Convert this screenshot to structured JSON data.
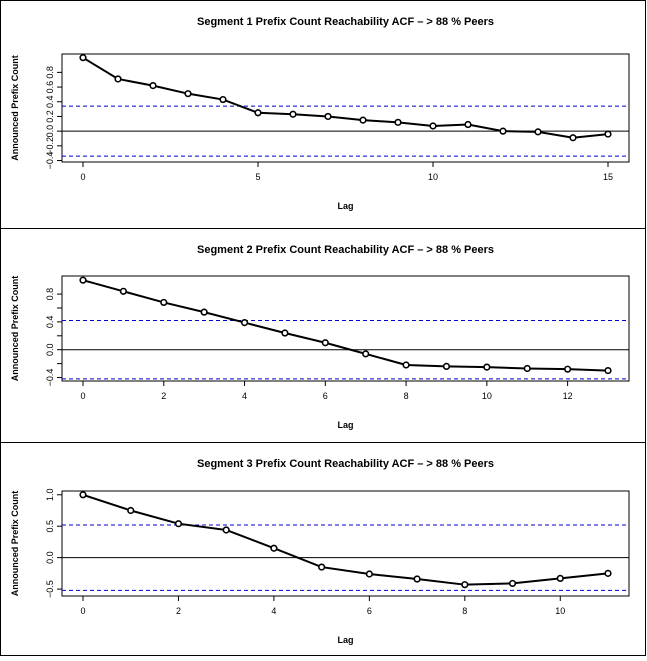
{
  "chart_data": [
    {
      "type": "line",
      "title": "Segment 1 Prefix Count Reachability ACF – > 88 % Peers",
      "xlabel": "Lag",
      "ylabel": "Announced Prefix Count",
      "x": [
        0,
        1,
        2,
        3,
        4,
        5,
        6,
        7,
        8,
        9,
        10,
        11,
        12,
        13,
        14,
        15
      ],
      "values": [
        1.0,
        0.71,
        0.62,
        0.51,
        0.43,
        0.25,
        0.23,
        0.2,
        0.15,
        0.12,
        0.07,
        0.09,
        0.0,
        -0.01,
        -0.09,
        -0.04
      ],
      "xlim": [
        -0.6,
        15.6
      ],
      "ylim": [
        -0.42,
        1.05
      ],
      "xticks": [
        0,
        5,
        10,
        15
      ],
      "yticks": [
        -0.4,
        -0.2,
        0.0,
        0.2,
        0.4,
        0.6,
        0.8
      ],
      "ytick_labels": [
        "−0.4",
        "−0.2",
        "0.0",
        "0.2",
        "0.4",
        "0.6",
        "0.8"
      ],
      "hlines": {
        "zero": 0.0,
        "ci": [
          0.34,
          -0.34
        ]
      },
      "colors": {
        "line": "#000000",
        "ci": "#0000cc",
        "zero": "#000000"
      }
    },
    {
      "type": "line",
      "title": "Segment 2 Prefix Count Reachability ACF – > 88 % Peers",
      "xlabel": "Lag",
      "ylabel": "Announced Prefix Count",
      "x": [
        0,
        1,
        2,
        3,
        4,
        5,
        6,
        7,
        8,
        9,
        10,
        11,
        12,
        13
      ],
      "values": [
        1.0,
        0.84,
        0.68,
        0.54,
        0.39,
        0.24,
        0.1,
        -0.06,
        -0.22,
        -0.24,
        -0.25,
        -0.27,
        -0.28,
        -0.3
      ],
      "xlim": [
        -0.52,
        13.52
      ],
      "ylim": [
        -0.45,
        1.06
      ],
      "xticks": [
        0,
        2,
        4,
        6,
        8,
        10,
        12
      ],
      "yticks": [
        -0.4,
        0.0,
        0.4,
        0.8
      ],
      "ytick_labels": [
        "−0.4",
        "0.0",
        "0.4",
        "0.8"
      ],
      "minor_yticks": [
        -0.2,
        0.2,
        0.6
      ],
      "hlines": {
        "zero": 0.0,
        "ci": [
          0.42,
          -0.42
        ]
      },
      "colors": {
        "line": "#000000",
        "ci": "#0000cc",
        "zero": "#000000"
      }
    },
    {
      "type": "line",
      "title": "Segment 3 Prefix Count Reachability ACF – > 88 % Peers",
      "xlabel": "Lag",
      "ylabel": "Announced Prefix Count",
      "x": [
        0,
        1,
        2,
        3,
        4,
        5,
        6,
        7,
        8,
        9,
        10,
        11
      ],
      "values": [
        1.0,
        0.75,
        0.54,
        0.44,
        0.15,
        -0.15,
        -0.26,
        -0.34,
        -0.43,
        -0.41,
        -0.33,
        -0.25
      ],
      "xlim": [
        -0.44,
        11.44
      ],
      "ylim": [
        -0.61,
        1.06
      ],
      "xticks": [
        0,
        2,
        4,
        6,
        8,
        10
      ],
      "yticks": [
        -0.5,
        0.0,
        0.5,
        1.0
      ],
      "ytick_labels": [
        "−0.5",
        "0.0",
        "0.5",
        "1.0"
      ],
      "hlines": {
        "zero": 0.0,
        "ci": [
          0.52,
          -0.52
        ]
      },
      "colors": {
        "line": "#000000",
        "ci": "#0000cc",
        "zero": "#000000"
      }
    }
  ]
}
